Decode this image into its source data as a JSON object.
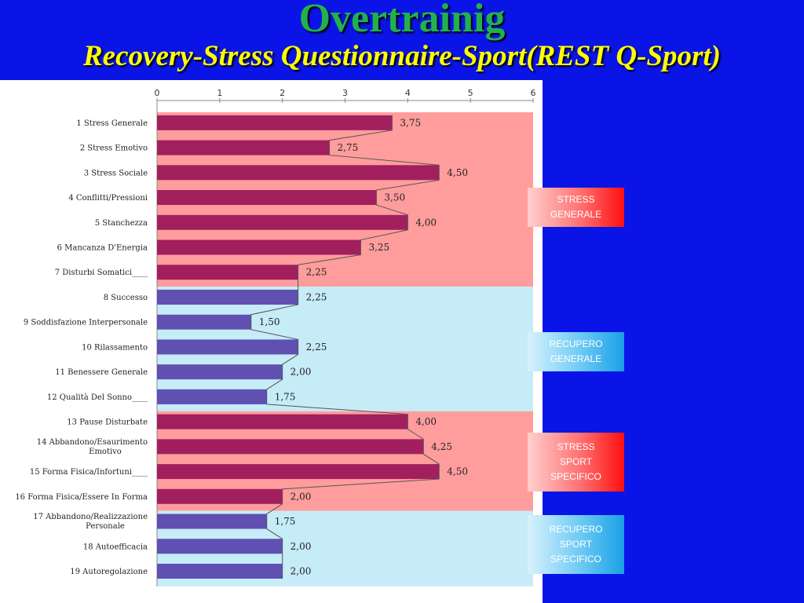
{
  "title": "Overtrainig",
  "subtitle": "Recovery-Stress Questionnaire-Sport(REST Q-Sport)",
  "colors": {
    "stress_bar": "#a21f5e",
    "recovery_bar": "#5f50b2",
    "stress_band": "#ff9d9d",
    "recovery_band": "#c6ecf8",
    "background": "#0a14e6",
    "title": "#22b14c",
    "subtitle": "#ffff00"
  },
  "groups": [
    {
      "label": "STRESS\nGENERALE",
      "type": "stress",
      "items": [
        0,
        6
      ]
    },
    {
      "label": "RECUPERO\nGENERALE",
      "type": "recovery",
      "items": [
        7,
        11
      ]
    },
    {
      "label": "STRESS\nSPORT\nSPECIFICO",
      "type": "stress",
      "items": [
        12,
        15
      ]
    },
    {
      "label": "RECUPERO\nSPORT\nSPECIFICO",
      "type": "recovery",
      "items": [
        16,
        18
      ]
    }
  ],
  "chart_data": {
    "type": "bar",
    "orientation": "horizontal",
    "xlim": [
      0,
      6
    ],
    "xticks": [
      "0",
      "1",
      "2",
      "3",
      "4",
      "5",
      "6"
    ],
    "categories": [
      "1   Stress Generale",
      "2   Stress Emotivo",
      "3   Stress Sociale",
      "4   Conflitti/Pressioni",
      "5   Stanchezza",
      "6   Mancanza D'Energia",
      "7   Disturbi Somatici____",
      "8   Successo",
      "9   Soddisfazione Interpersonale",
      "10 Rilassamento",
      "11 Benessere Generale",
      "12 Qualità Del Sonno____",
      "13 Pause Disturbate",
      "14 Abbandono/Esaurimento\nEmotivo",
      "15 Forma Fisica/Infortuni____",
      "16 Forma Fisica/Essere In Forma",
      "17 Abbandono/Realizzazione\nPersonale",
      "18 Autoefficacia",
      "19 Autoregolazione"
    ],
    "values": [
      3.75,
      2.75,
      4.5,
      3.5,
      4.0,
      3.25,
      2.25,
      2.25,
      1.5,
      2.25,
      2.0,
      1.75,
      4.0,
      4.25,
      4.5,
      2.0,
      1.75,
      2.0,
      2.0
    ],
    "value_labels": [
      "3,75",
      "2,75",
      "4,50",
      "3,50",
      "4,00",
      "3,25",
      "2,25",
      "2,25",
      "1,50",
      "2,25",
      "2,00",
      "1,75",
      "4,00",
      "4,25",
      "4,50",
      "2,00",
      "1,75",
      "2,00",
      "2,00"
    ],
    "series_type": [
      "stress",
      "stress",
      "stress",
      "stress",
      "stress",
      "stress",
      "stress",
      "recovery",
      "recovery",
      "recovery",
      "recovery",
      "recovery",
      "stress",
      "stress",
      "stress",
      "stress",
      "recovery",
      "recovery",
      "recovery"
    ]
  }
}
